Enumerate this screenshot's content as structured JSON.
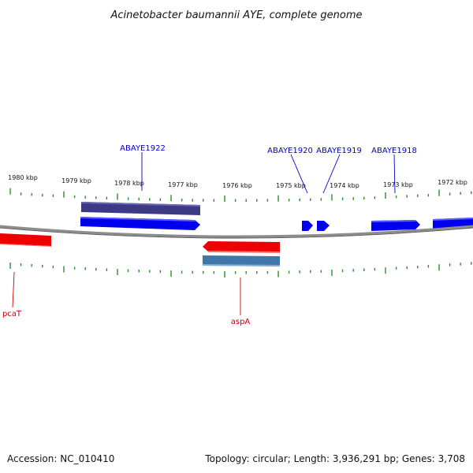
{
  "title": "Acinetobacter baumannii AYE, complete genome",
  "footer": {
    "accession": "Accession: NC_010410",
    "stats": "Topology: circular; Length: 3,936,291 bp; Genes: 3,708"
  },
  "scale_labels": [
    "1980 kbp",
    "1979 kbp",
    "1978 kbp",
    "1977 kbp",
    "1976 kbp",
    "1975 kbp",
    "1974 kbp",
    "1973 kbp",
    "1972 kbp"
  ],
  "forward_gene_labels": [
    "ABAYE1922",
    "ABAYE1920",
    "ABAYE1919",
    "ABAYE1918"
  ],
  "reverse_gene_labels": [
    "pcaT",
    "aspA"
  ],
  "colors": {
    "backbone": "#8c8c8c",
    "forward_gene": "#0000ee",
    "forward_cds": "#3d3a85",
    "reverse_gene": "#ee0000",
    "reverse_cds": "#3f78a8",
    "tick": "#2e8b2e",
    "forward_label": "#0000cc",
    "reverse_label": "#cc0000"
  }
}
